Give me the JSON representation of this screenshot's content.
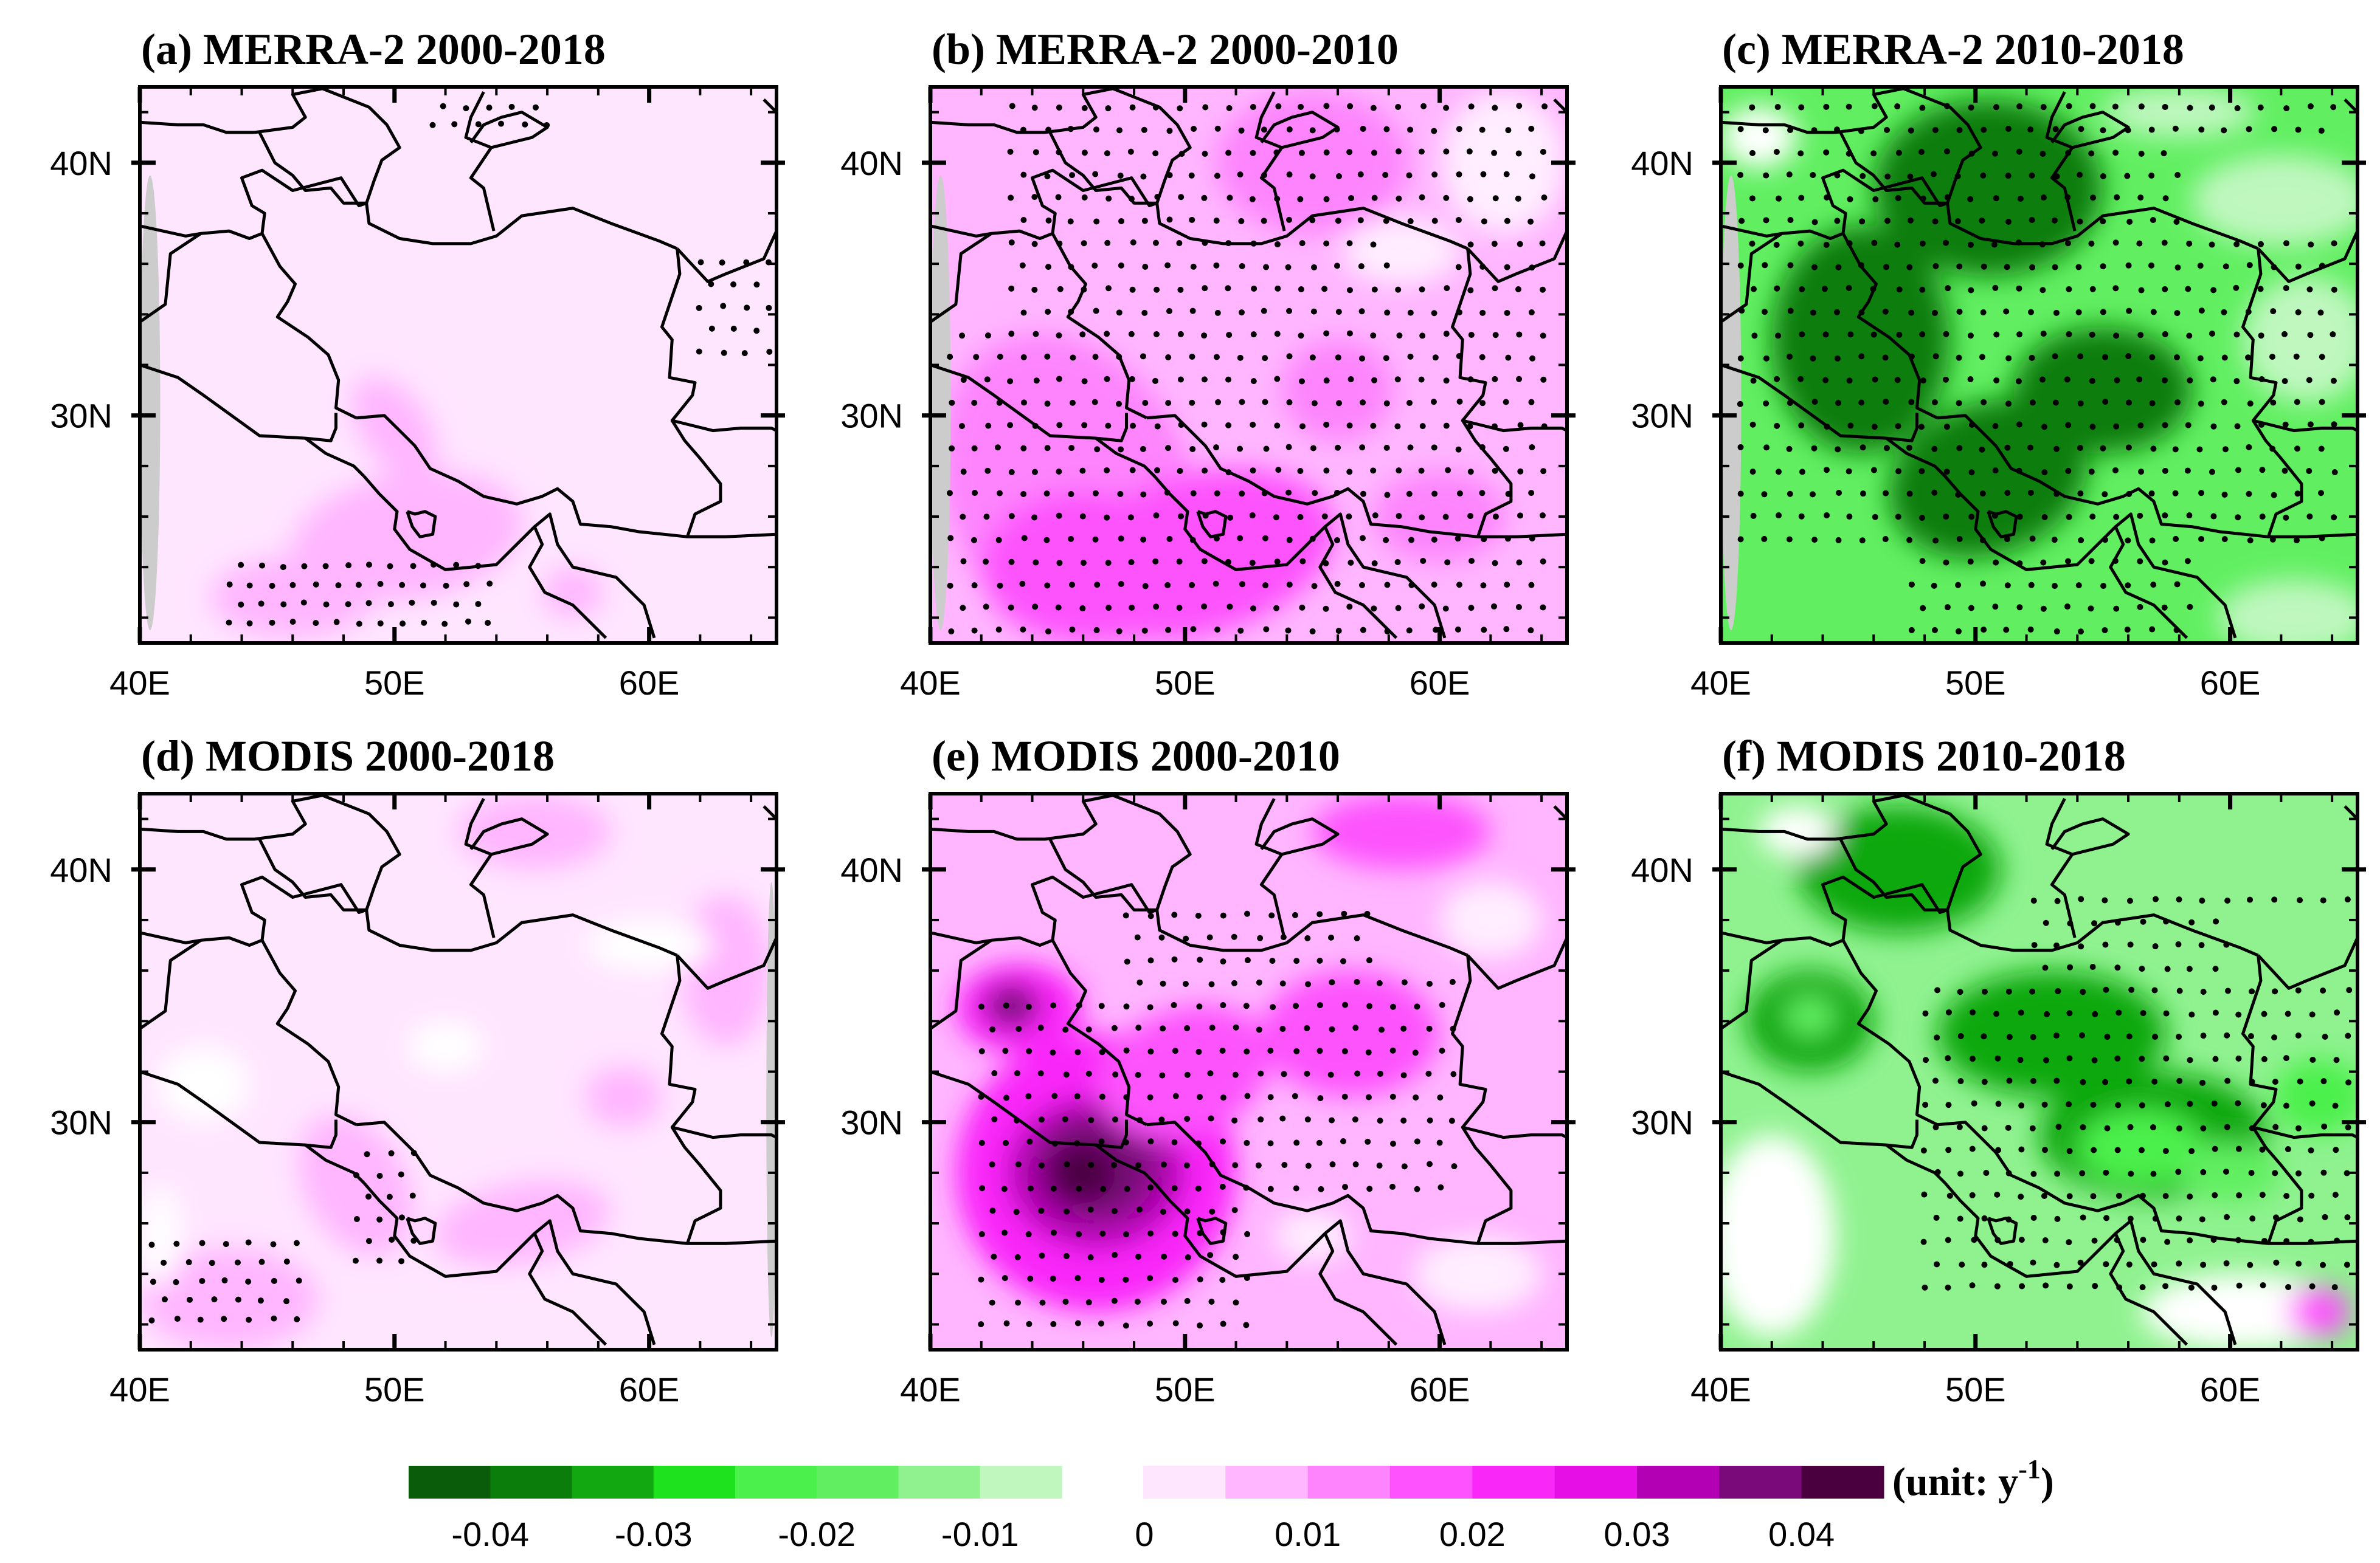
{
  "figure": {
    "panels": [
      {
        "id": "a",
        "title": "(a) MERRA-2  2000-2018",
        "dataset": "MERRA-2",
        "period": "2000-2018",
        "scheme": "pos",
        "pattern": "a",
        "stipple": "a"
      },
      {
        "id": "b",
        "title": "(b) MERRA-2  2000-2010",
        "dataset": "MERRA-2",
        "period": "2000-2010",
        "scheme": "pos",
        "pattern": "b",
        "stipple": "b"
      },
      {
        "id": "c",
        "title": "(c) MERRA-2  2010-2018",
        "dataset": "MERRA-2",
        "period": "2010-2018",
        "scheme": "neg",
        "pattern": "c",
        "stipple": "c"
      },
      {
        "id": "d",
        "title": "(d) MODIS  2000-2018",
        "dataset": "MODIS",
        "period": "2000-2018",
        "scheme": "pos",
        "pattern": "d",
        "stipple": "d"
      },
      {
        "id": "e",
        "title": "(e) MODIS  2000-2010",
        "dataset": "MODIS",
        "period": "2000-2010",
        "scheme": "pos",
        "pattern": "e",
        "stipple": "e"
      },
      {
        "id": "f",
        "title": "(f) MODIS  2010-2018",
        "dataset": "MODIS",
        "period": "2010-2018",
        "scheme": "neg",
        "pattern": "f",
        "stipple": "f"
      }
    ],
    "axes": {
      "lon_range": [
        40,
        65
      ],
      "lat_range": [
        21,
        43
      ],
      "x_ticks": [
        {
          "value": 40,
          "label": "40E"
        },
        {
          "value": 50,
          "label": "50E"
        },
        {
          "value": 60,
          "label": "60E"
        }
      ],
      "y_ticks": [
        {
          "value": 40,
          "label": "40N"
        },
        {
          "value": 30,
          "label": "30N"
        }
      ]
    },
    "colorbar": {
      "negative": [
        {
          "range": [
            -0.045,
            -0.04
          ],
          "color": "#0a5c0a"
        },
        {
          "range": [
            -0.04,
            -0.035
          ],
          "color": "#0b7d0b"
        },
        {
          "range": [
            -0.035,
            -0.03
          ],
          "color": "#11a811"
        },
        {
          "range": [
            -0.03,
            -0.025
          ],
          "color": "#1de21d"
        },
        {
          "range": [
            -0.025,
            -0.02
          ],
          "color": "#4cf04c"
        },
        {
          "range": [
            -0.02,
            -0.015
          ],
          "color": "#61ef61"
        },
        {
          "range": [
            -0.015,
            -0.01
          ],
          "color": "#8ff28f"
        },
        {
          "range": [
            -0.01,
            0
          ],
          "color": "#bff7bf"
        }
      ],
      "positive": [
        {
          "range": [
            0,
            0.005
          ],
          "color": "#ffe6ff"
        },
        {
          "range": [
            0.005,
            0.01
          ],
          "color": "#ffb6ff"
        },
        {
          "range": [
            0.01,
            0.015
          ],
          "color": "#fd84fd"
        },
        {
          "range": [
            0.015,
            0.02
          ],
          "color": "#fd52fd"
        },
        {
          "range": [
            0.02,
            0.025
          ],
          "color": "#f928f9"
        },
        {
          "range": [
            0.025,
            0.03
          ],
          "color": "#e60fe6"
        },
        {
          "range": [
            0.03,
            0.035
          ],
          "color": "#b400b4"
        },
        {
          "range": [
            0.035,
            0.04
          ],
          "color": "#7a0a7a"
        },
        {
          "range": [
            0.04,
            0.045
          ],
          "color": "#4a003f"
        }
      ],
      "neg_labels": [
        "-0.04",
        "-0.03",
        "-0.02",
        "-0.01"
      ],
      "pos_labels": [
        "0",
        "0.01",
        "0.02",
        "0.03",
        "0.04"
      ],
      "unit_label": "(unit: y",
      "unit_exp": "-1",
      "unit_close": ")"
    }
  }
}
